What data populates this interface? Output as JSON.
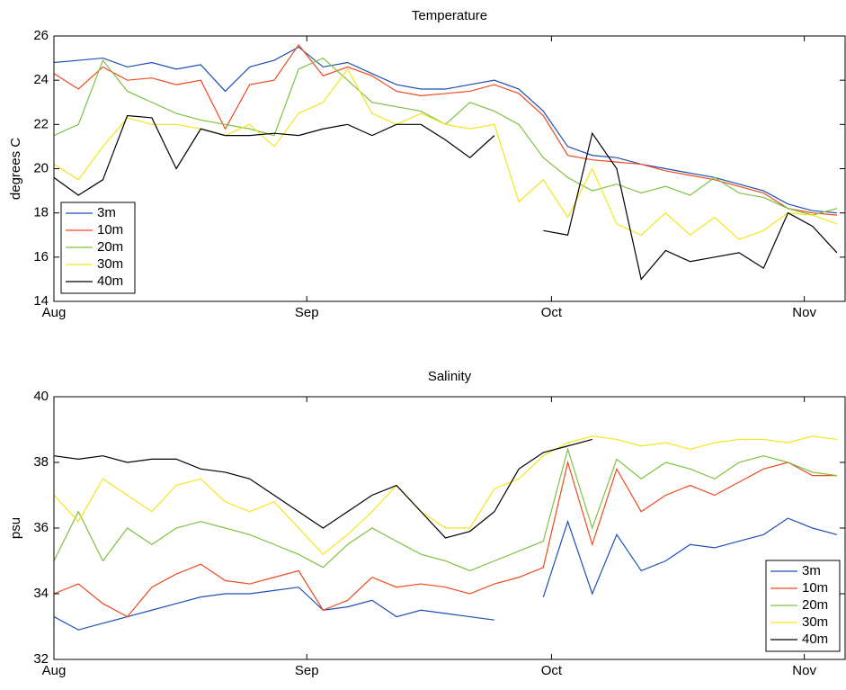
{
  "chart_data": [
    {
      "type": "line",
      "title": "Temperature",
      "y_label": "degrees C",
      "x": [
        0,
        3,
        6,
        9,
        12,
        15,
        18,
        21,
        24,
        27,
        30,
        33,
        36,
        39,
        42,
        45,
        48,
        51,
        54,
        57,
        60,
        63,
        66,
        69,
        72,
        75,
        78,
        81,
        84,
        87,
        90,
        93,
        96
      ],
      "xlim": [
        0,
        97
      ],
      "xticks": [
        {
          "value": 0,
          "label": "Aug"
        },
        {
          "value": 31,
          "label": "Sep"
        },
        {
          "value": 61,
          "label": "Oct"
        },
        {
          "value": 92,
          "label": "Nov"
        }
      ],
      "ylim": [
        14,
        26
      ],
      "yticks": [
        14,
        16,
        18,
        20,
        22,
        24,
        26
      ],
      "legend": "lower left",
      "series": [
        {
          "name": "3m",
          "color": "#1f4fb4",
          "values": [
            24.8,
            24.9,
            25.0,
            24.6,
            24.8,
            24.5,
            24.7,
            23.5,
            24.6,
            24.9,
            25.5,
            24.6,
            24.8,
            24.3,
            23.8,
            23.6,
            23.6,
            23.8,
            24.0,
            23.6,
            22.6,
            21.0,
            20.6,
            20.5,
            20.2,
            20.0,
            19.8,
            19.6,
            19.3,
            19.0,
            18.4,
            18.1,
            18.0
          ]
        },
        {
          "name": "10m",
          "color": "#ee4a1e",
          "values": [
            24.3,
            23.6,
            24.6,
            24.0,
            24.1,
            23.8,
            24.0,
            21.8,
            23.8,
            24.0,
            25.6,
            24.2,
            24.6,
            24.2,
            23.5,
            23.3,
            23.4,
            23.5,
            23.8,
            23.4,
            22.4,
            20.6,
            20.4,
            20.3,
            20.2,
            19.9,
            19.7,
            19.5,
            19.2,
            18.9,
            18.2,
            18.0,
            17.9
          ]
        },
        {
          "name": "20m",
          "color": "#7dc242",
          "values": [
            21.5,
            22.0,
            24.9,
            23.5,
            23.0,
            22.5,
            22.2,
            22.0,
            21.8,
            21.5,
            24.5,
            25.0,
            24.0,
            23.0,
            22.8,
            22.6,
            22.0,
            23.0,
            22.6,
            22.0,
            20.5,
            19.6,
            19.0,
            19.3,
            18.9,
            19.2,
            18.8,
            19.6,
            18.9,
            18.7,
            18.2,
            17.9,
            18.2
          ]
        },
        {
          "name": "30m",
          "color": "#f5e51b",
          "values": [
            20.2,
            19.5,
            21.0,
            22.3,
            22.0,
            22.0,
            21.8,
            21.5,
            22.0,
            21.0,
            22.5,
            23.0,
            24.5,
            22.5,
            22.0,
            22.5,
            22.0,
            21.8,
            22.0,
            18.5,
            19.5,
            17.8,
            20.0,
            17.5,
            17.0,
            18.0,
            17.0,
            17.8,
            16.8,
            17.2,
            18.0,
            17.9,
            17.5
          ]
        },
        {
          "name": "40m",
          "color": "#000000",
          "values": [
            19.6,
            18.8,
            19.5,
            22.4,
            22.3,
            20.0,
            21.8,
            21.5,
            21.5,
            21.6,
            21.5,
            21.8,
            22.0,
            21.5,
            22.0,
            22.0,
            21.3,
            20.5,
            21.5,
            null,
            17.2,
            17.0,
            21.6,
            20.0,
            15.0,
            16.3,
            15.8,
            16.0,
            16.2,
            15.5,
            18.0,
            17.4,
            16.2
          ]
        }
      ]
    },
    {
      "type": "line",
      "title": "Salinity",
      "y_label": "psu",
      "x": [
        0,
        3,
        6,
        9,
        12,
        15,
        18,
        21,
        24,
        27,
        30,
        33,
        36,
        39,
        42,
        45,
        48,
        51,
        54,
        57,
        60,
        63,
        66,
        69,
        72,
        75,
        78,
        81,
        84,
        87,
        90,
        93,
        96
      ],
      "xlim": [
        0,
        97
      ],
      "xticks": [
        {
          "value": 0,
          "label": "Aug"
        },
        {
          "value": 31,
          "label": "Sep"
        },
        {
          "value": 61,
          "label": "Oct"
        },
        {
          "value": 92,
          "label": "Nov"
        }
      ],
      "ylim": [
        32,
        40
      ],
      "yticks": [
        32,
        34,
        36,
        38,
        40
      ],
      "legend": "lower right",
      "series": [
        {
          "name": "3m",
          "color": "#1f4fb4",
          "values": [
            33.3,
            32.9,
            33.1,
            33.3,
            33.5,
            33.7,
            33.9,
            34.0,
            34.0,
            34.1,
            34.2,
            33.5,
            33.6,
            33.8,
            33.3,
            33.5,
            33.4,
            33.3,
            33.2,
            null,
            33.9,
            36.2,
            34.0,
            35.8,
            34.7,
            35.0,
            35.5,
            35.4,
            35.6,
            35.8,
            36.3,
            36.0,
            35.8
          ]
        },
        {
          "name": "10m",
          "color": "#ee4a1e",
          "values": [
            34.0,
            34.3,
            33.7,
            33.3,
            34.2,
            34.6,
            34.9,
            34.4,
            34.3,
            34.5,
            34.7,
            33.5,
            33.8,
            34.5,
            34.2,
            34.3,
            34.2,
            34.0,
            34.3,
            34.5,
            34.8,
            38.0,
            35.5,
            37.8,
            36.5,
            37.0,
            37.3,
            37.0,
            37.4,
            37.8,
            38.0,
            37.6,
            37.6
          ]
        },
        {
          "name": "20m",
          "color": "#7dc242",
          "values": [
            35.0,
            36.5,
            35.0,
            36.0,
            35.5,
            36.0,
            36.2,
            36.0,
            35.8,
            35.5,
            35.2,
            34.8,
            35.5,
            36.0,
            35.6,
            35.2,
            35.0,
            34.7,
            35.0,
            35.3,
            35.6,
            38.4,
            36.0,
            38.1,
            37.5,
            38.0,
            37.8,
            37.5,
            38.0,
            38.2,
            38.0,
            37.7,
            37.6
          ]
        },
        {
          "name": "30m",
          "color": "#f5e51b",
          "values": [
            37.0,
            36.2,
            37.5,
            37.0,
            36.5,
            37.3,
            37.5,
            36.8,
            36.5,
            36.8,
            36.0,
            35.2,
            35.8,
            36.5,
            37.3,
            36.5,
            36.0,
            36.0,
            37.2,
            37.5,
            38.2,
            38.6,
            38.8,
            38.7,
            38.5,
            38.6,
            38.4,
            38.6,
            38.7,
            38.7,
            38.6,
            38.8,
            38.7
          ]
        },
        {
          "name": "40m",
          "color": "#000000",
          "values": [
            38.2,
            38.1,
            38.2,
            38.0,
            38.1,
            38.1,
            37.8,
            37.7,
            37.5,
            37.0,
            36.5,
            36.0,
            36.5,
            37.0,
            37.3,
            36.5,
            35.7,
            35.9,
            36.5,
            37.8,
            38.3,
            38.5,
            38.7,
            null,
            null,
            null,
            null,
            null,
            null,
            null,
            null,
            null,
            null
          ]
        }
      ]
    }
  ]
}
